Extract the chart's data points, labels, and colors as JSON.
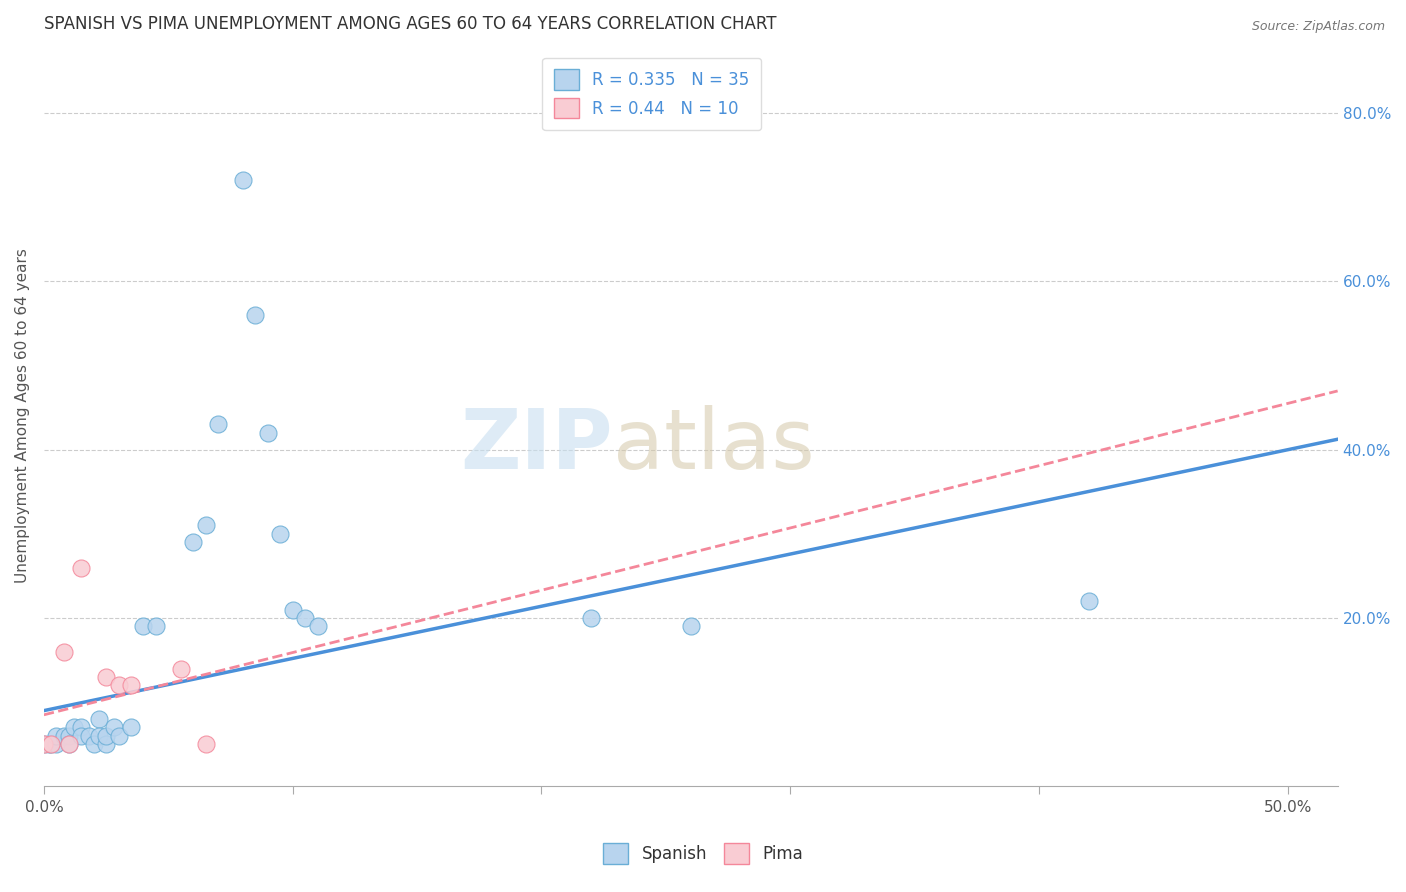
{
  "title": "SPANISH VS PIMA UNEMPLOYMENT AMONG AGES 60 TO 64 YEARS CORRELATION CHART",
  "source": "Source: ZipAtlas.com",
  "ylabel": "Unemployment Among Ages 60 to 64 years",
  "xlim": [
    0.0,
    0.52
  ],
  "ylim": [
    0.0,
    0.88
  ],
  "xtick_labels": [
    "0.0%",
    "",
    "",
    "",
    "",
    "50.0%"
  ],
  "xtick_vals": [
    0.0,
    0.1,
    0.2,
    0.3,
    0.4,
    0.5
  ],
  "ytick_vals": [
    0.2,
    0.4,
    0.6,
    0.8
  ],
  "ytick_labels": [
    "20.0%",
    "40.0%",
    "60.0%",
    "80.0%"
  ],
  "spanish_color": "#b8d4ee",
  "pima_color": "#f9ccd3",
  "spanish_edge_color": "#6aaed6",
  "pima_edge_color": "#f4879a",
  "spanish_line_color": "#4a90d9",
  "pima_line_color": "#f4879a",
  "spanish_R": 0.335,
  "spanish_N": 35,
  "pima_R": 0.44,
  "pima_N": 10,
  "spanish_x": [
    0.0,
    0.002,
    0.003,
    0.005,
    0.005,
    0.008,
    0.01,
    0.01,
    0.012,
    0.015,
    0.015,
    0.018,
    0.02,
    0.022,
    0.022,
    0.025,
    0.025,
    0.028,
    0.03,
    0.035,
    0.04,
    0.045,
    0.06,
    0.065,
    0.07,
    0.08,
    0.085,
    0.09,
    0.095,
    0.1,
    0.105,
    0.11,
    0.22,
    0.26,
    0.42
  ],
  "spanish_y": [
    0.05,
    0.05,
    0.05,
    0.05,
    0.06,
    0.06,
    0.06,
    0.05,
    0.07,
    0.07,
    0.06,
    0.06,
    0.05,
    0.08,
    0.06,
    0.05,
    0.06,
    0.07,
    0.06,
    0.07,
    0.19,
    0.19,
    0.29,
    0.31,
    0.43,
    0.72,
    0.56,
    0.42,
    0.3,
    0.21,
    0.2,
    0.19,
    0.2,
    0.19,
    0.22
  ],
  "pima_x": [
    0.0,
    0.003,
    0.008,
    0.01,
    0.015,
    0.025,
    0.03,
    0.035,
    0.055,
    0.065
  ],
  "pima_y": [
    0.05,
    0.05,
    0.16,
    0.05,
    0.26,
    0.13,
    0.12,
    0.12,
    0.14,
    0.05
  ],
  "grid_color": "#cccccc",
  "spine_color": "#aaaaaa"
}
